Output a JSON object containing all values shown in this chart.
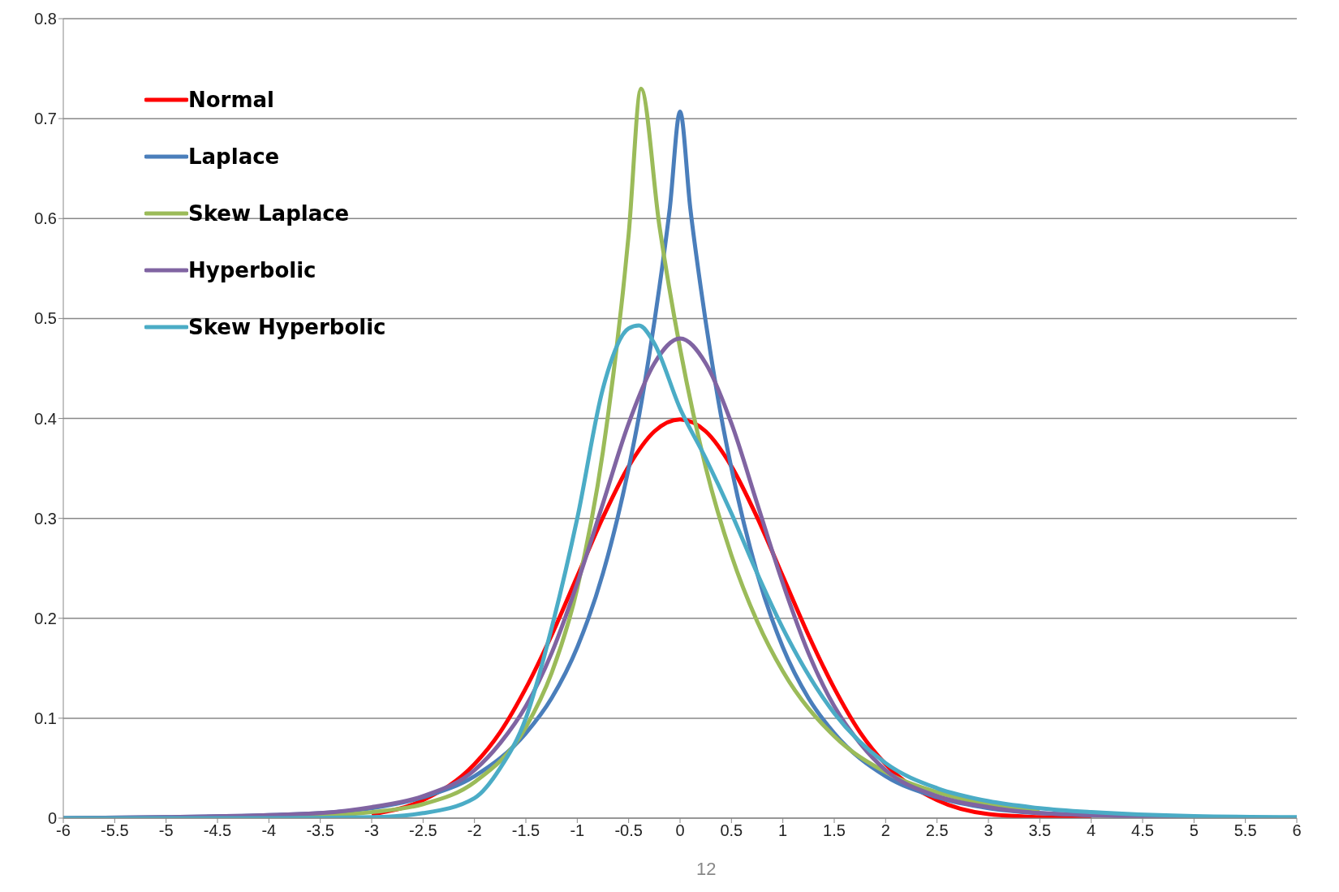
{
  "chart_data": {
    "type": "line",
    "xlim": [
      -6,
      6
    ],
    "xticks": [
      -6,
      -5.5,
      -5,
      -4.5,
      -4,
      -3.5,
      -3,
      -2.5,
      -2,
      -1.5,
      -1,
      -0.5,
      0,
      0.5,
      1,
      1.5,
      2,
      2.5,
      3,
      3.5,
      4,
      4.5,
      5,
      5.5,
      6
    ],
    "ylim": [
      0,
      0.8
    ],
    "yticks": [
      0,
      0.1,
      0.2,
      0.3,
      0.4,
      0.5,
      0.6,
      0.7,
      0.8
    ],
    "grid": "y",
    "legend": "top left",
    "marker": "none",
    "line_style": "solid",
    "annotations": [
      "12"
    ],
    "series": [
      {
        "name": "Normal",
        "color": "#ff0000",
        "x": [
          -3,
          -2.5,
          -2,
          -1.75,
          -1.5,
          -1.25,
          -1,
          -0.75,
          -0.5,
          -0.25,
          0,
          0.25,
          0.5,
          0.75,
          1,
          1.25,
          1.5,
          1.75,
          2,
          2.5,
          3,
          3.5,
          4
        ],
        "values": [
          0.004,
          0.018,
          0.054,
          0.086,
          0.13,
          0.183,
          0.242,
          0.301,
          0.352,
          0.387,
          0.399,
          0.387,
          0.352,
          0.301,
          0.242,
          0.183,
          0.13,
          0.086,
          0.054,
          0.018,
          0.004,
          0.001,
          0
        ]
      },
      {
        "name": "Laplace",
        "color": "#4a7ebb",
        "x": [
          -6,
          -5,
          -4,
          -3.5,
          -3,
          -2.5,
          -2,
          -1.5,
          -1.25,
          -1,
          -0.75,
          -0.5,
          -0.4,
          -0.3,
          -0.2,
          -0.1,
          0,
          0.1,
          0.2,
          0.3,
          0.4,
          0.5,
          0.75,
          1,
          1.25,
          1.5,
          2,
          2.5,
          3,
          3.5,
          4,
          5,
          6
        ],
        "values": [
          0,
          0.001,
          0.003,
          0.005,
          0.01,
          0.021,
          0.042,
          0.085,
          0.12,
          0.171,
          0.245,
          0.35,
          0.402,
          0.463,
          0.532,
          0.61,
          0.707,
          0.61,
          0.532,
          0.463,
          0.402,
          0.35,
          0.245,
          0.171,
          0.12,
          0.085,
          0.042,
          0.021,
          0.01,
          0.005,
          0.003,
          0.001,
          0
        ]
      },
      {
        "name": "Skew Laplace",
        "color": "#9bbb59",
        "x": [
          -4,
          -3.5,
          -3,
          -2.5,
          -2,
          -1.5,
          -1.25,
          -1,
          -0.75,
          -0.5,
          -0.38,
          -0.2,
          0,
          0.25,
          0.5,
          0.75,
          1,
          1.5,
          2,
          2.5,
          3,
          3.5
        ],
        "values": [
          0.001,
          0.002,
          0.006,
          0.014,
          0.036,
          0.091,
          0.145,
          0.23,
          0.367,
          0.584,
          0.73,
          0.592,
          0.47,
          0.351,
          0.263,
          0.197,
          0.147,
          0.082,
          0.046,
          0.026,
          0.014,
          0.008
        ]
      },
      {
        "name": "Hyperbolic",
        "color": "#8064a2",
        "x": [
          -6,
          -5,
          -4,
          -3.5,
          -3,
          -2.5,
          -2,
          -1.75,
          -1.5,
          -1.25,
          -1,
          -0.75,
          -0.5,
          -0.25,
          0,
          0.25,
          0.5,
          0.75,
          1,
          1.25,
          1.5,
          1.75,
          2,
          2.5,
          3,
          3.5,
          4,
          5,
          6
        ],
        "values": [
          0,
          0.001,
          0.003,
          0.005,
          0.011,
          0.022,
          0.048,
          0.075,
          0.112,
          0.165,
          0.235,
          0.315,
          0.395,
          0.455,
          0.48,
          0.455,
          0.395,
          0.315,
          0.235,
          0.165,
          0.112,
          0.075,
          0.048,
          0.022,
          0.011,
          0.005,
          0.003,
          0.001,
          0
        ]
      },
      {
        "name": "Skew Hyperbolic",
        "color": "#4bacc6",
        "x": [
          -6,
          -5,
          -4,
          -3,
          -2.5,
          -2,
          -1.75,
          -1.5,
          -1.25,
          -1,
          -0.75,
          -0.5,
          -0.4,
          -0.25,
          0,
          0.25,
          0.5,
          0.75,
          1,
          1.5,
          2,
          2.5,
          3,
          3.5,
          4,
          5,
          6
        ],
        "values": [
          0,
          0,
          0,
          0.001,
          0.005,
          0.02,
          0.05,
          0.1,
          0.19,
          0.3,
          0.43,
          0.49,
          0.493,
          0.475,
          0.41,
          0.36,
          0.305,
          0.245,
          0.19,
          0.105,
          0.055,
          0.03,
          0.017,
          0.01,
          0.006,
          0.002,
          0.001
        ]
      }
    ]
  }
}
